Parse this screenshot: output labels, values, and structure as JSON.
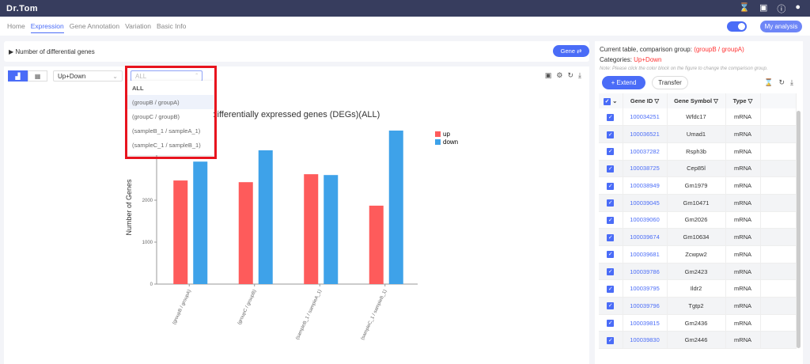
{
  "app": {
    "title": "Dr.Tom"
  },
  "nav": [
    "Home",
    "Expression",
    "Gene Annotation",
    "Variation",
    "Basic Info"
  ],
  "header": {
    "my_analysis": "My analysis"
  },
  "section": {
    "title": "Number of differential genes",
    "gene_button": "Gene ⇄"
  },
  "controls": {
    "category": "Up+Down",
    "group_placeholder": "ALL"
  },
  "dropdown": [
    "ALL",
    "(groupB / groupA)",
    "(groupC / groupB)",
    "(sampleB_1 / sampleA_1)",
    "(sampleC_1 / sampleB_1)"
  ],
  "colors": {
    "up": "#fe5b5b",
    "down": "#3ea2e9",
    "accent": "#4a6cf7",
    "highlight": "#e8141e"
  },
  "chart_data": {
    "type": "bar",
    "title": "Statistics of differentially expressed genes (DEGs)(ALL)",
    "title_visible": "ics of differentially expressed genes (DEGs)(ALL)",
    "ylabel": "Number of Genes",
    "xlabel": "",
    "categories": [
      "(groupB / groupA)",
      "(groupC / groupB)",
      "(sampleB_1 / sampleA_1)",
      "(sampleC_1 / sampleB_1)"
    ],
    "series": [
      {
        "name": "up",
        "values": [
          2470,
          2430,
          2620,
          1870
        ]
      },
      {
        "name": "down",
        "values": [
          2920,
          3190,
          2600,
          3660
        ]
      }
    ],
    "yticks": [
      "0",
      "1000",
      "2000"
    ],
    "ylim": [
      0,
      4000
    ],
    "legend": "top-right"
  },
  "right": {
    "current_label": "Current table, comparison group:",
    "current_value": "(groupB / groupA)",
    "categories_label": "Categories:",
    "categories_value": "Up+Down",
    "note": "Note: Please click the color block on the figure to change the comparison group.",
    "extend": "+ Extend",
    "transfer": "Transfer",
    "columns": [
      "Gene ID",
      "Gene Symbol",
      "Type"
    ],
    "rows": [
      [
        "100034251",
        "Wfdc17",
        "mRNA"
      ],
      [
        "100036521",
        "Umad1",
        "mRNA"
      ],
      [
        "100037282",
        "Rsph3b",
        "mRNA"
      ],
      [
        "100038725",
        "Cep85l",
        "mRNA"
      ],
      [
        "100038949",
        "Gm1979",
        "mRNA"
      ],
      [
        "100039045",
        "Gm10471",
        "mRNA"
      ],
      [
        "100039060",
        "Gm2026",
        "mRNA"
      ],
      [
        "100039674",
        "Gm10634",
        "mRNA"
      ],
      [
        "100039681",
        "Zcwpw2",
        "mRNA"
      ],
      [
        "100039786",
        "Gm2423",
        "mRNA"
      ],
      [
        "100039795",
        "Ildr2",
        "mRNA"
      ],
      [
        "100039796",
        "Tgtp2",
        "mRNA"
      ],
      [
        "100039815",
        "Gm2436",
        "mRNA"
      ],
      [
        "100039830",
        "Gm2446",
        "mRNA"
      ]
    ]
  }
}
